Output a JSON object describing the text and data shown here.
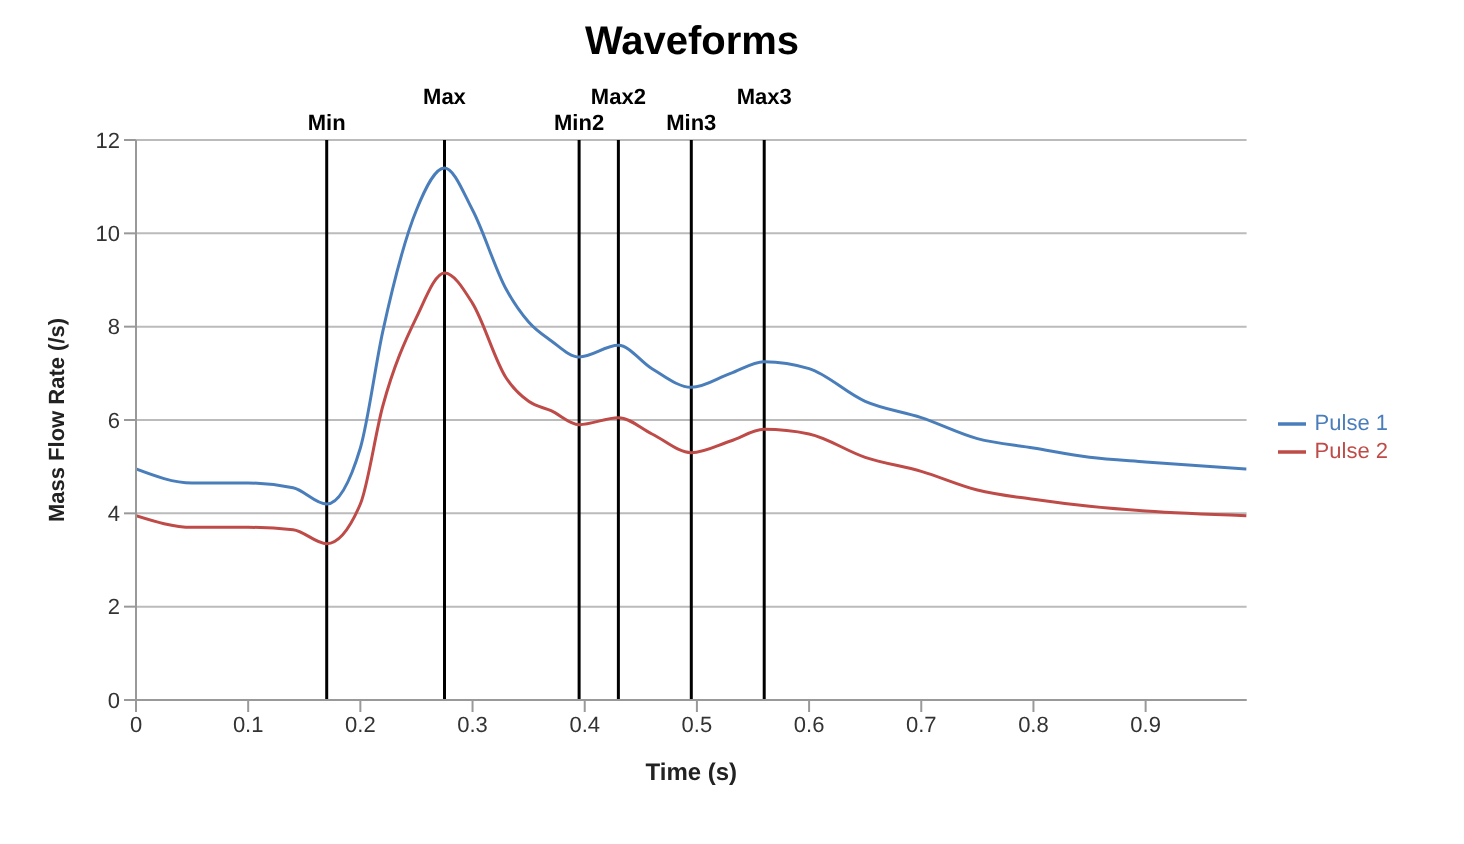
{
  "chart_data": {
    "type": "line",
    "title": "Waveforms",
    "xlabel": "Time (s)",
    "ylabel": "Mass Flow Rate (/s)",
    "x": [
      0,
      0.05,
      0.1,
      0.14,
      0.17,
      0.2,
      0.22,
      0.25,
      0.275,
      0.3,
      0.33,
      0.35,
      0.37,
      0.395,
      0.43,
      0.46,
      0.495,
      0.53,
      0.56,
      0.6,
      0.65,
      0.7,
      0.75,
      0.8,
      0.85,
      0.9,
      0.99
    ],
    "series": [
      {
        "name": "Pulse 1",
        "color": "#4a7ebb",
        "values": [
          4.95,
          4.65,
          4.65,
          4.55,
          4.2,
          5.4,
          7.9,
          10.5,
          11.4,
          10.5,
          8.8,
          8.1,
          7.7,
          7.35,
          7.6,
          7.1,
          6.7,
          7.0,
          7.25,
          7.1,
          6.4,
          6.05,
          5.6,
          5.4,
          5.2,
          5.1,
          4.95
        ]
      },
      {
        "name": "Pulse 2",
        "color": "#be4b48",
        "values": [
          3.95,
          3.7,
          3.7,
          3.65,
          3.35,
          4.2,
          6.3,
          8.2,
          9.15,
          8.5,
          6.9,
          6.4,
          6.2,
          5.9,
          6.05,
          5.7,
          5.3,
          5.55,
          5.8,
          5.7,
          5.2,
          4.9,
          4.5,
          4.3,
          4.15,
          4.05,
          3.95
        ]
      }
    ],
    "xlim": [
      0,
      0.99
    ],
    "xticks": [
      0,
      0.1,
      0.2,
      0.3,
      0.4,
      0.5,
      0.6,
      0.7,
      0.8,
      0.9
    ],
    "ylim": [
      0,
      12
    ],
    "yticks": [
      0,
      2,
      4,
      6,
      8,
      10,
      12
    ],
    "ref_lines": [
      {
        "axis": "x",
        "value": 0.17,
        "label": "Min",
        "color": "#000000"
      },
      {
        "axis": "x",
        "value": 0.275,
        "label": "Max",
        "color": "#000000"
      },
      {
        "axis": "x",
        "value": 0.395,
        "label": "Min2",
        "color": "#000000"
      },
      {
        "axis": "x",
        "value": 0.43,
        "label": "Max2",
        "color": "#000000"
      },
      {
        "axis": "x",
        "value": 0.495,
        "label": "Min3",
        "color": "#000000"
      },
      {
        "axis": "x",
        "value": 0.56,
        "label": "Max3",
        "color": "#000000"
      }
    ],
    "grid": "y",
    "legend": "right",
    "marker": "none",
    "line_style": "solid"
  }
}
